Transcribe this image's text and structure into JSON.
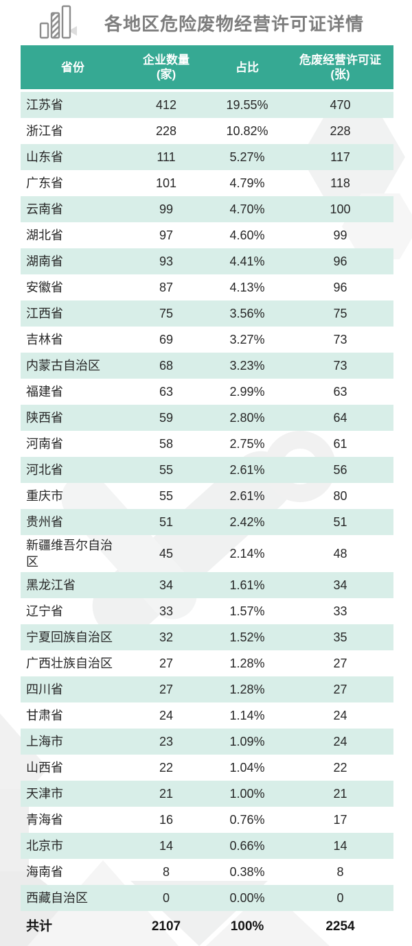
{
  "header": {
    "title": "各地区危险废物经营许可证详情",
    "icon": "bar-chart-icon"
  },
  "chart_data": {
    "type": "table",
    "title": "各地区危险废物经营许可证详情",
    "columns": [
      {
        "label": "省份",
        "sub": ""
      },
      {
        "label": "企业数量",
        "sub": "(家)"
      },
      {
        "label": "占比",
        "sub": ""
      },
      {
        "label": "危废经营许可证",
        "sub": "(张)"
      }
    ],
    "rows": [
      {
        "province": "江苏省",
        "companies": 412,
        "share": "19.55%",
        "licenses": 470
      },
      {
        "province": "浙江省",
        "companies": 228,
        "share": "10.82%",
        "licenses": 228
      },
      {
        "province": "山东省",
        "companies": 111,
        "share": "5.27%",
        "licenses": 117
      },
      {
        "province": "广东省",
        "companies": 101,
        "share": "4.79%",
        "licenses": 118
      },
      {
        "province": "云南省",
        "companies": 99,
        "share": "4.70%",
        "licenses": 100
      },
      {
        "province": "湖北省",
        "companies": 97,
        "share": "4.60%",
        "licenses": 99
      },
      {
        "province": "湖南省",
        "companies": 93,
        "share": "4.41%",
        "licenses": 96
      },
      {
        "province": "安徽省",
        "companies": 87,
        "share": "4.13%",
        "licenses": 96
      },
      {
        "province": "江西省",
        "companies": 75,
        "share": "3.56%",
        "licenses": 75
      },
      {
        "province": "吉林省",
        "companies": 69,
        "share": "3.27%",
        "licenses": 73
      },
      {
        "province": "内蒙古自治区",
        "companies": 68,
        "share": "3.23%",
        "licenses": 73
      },
      {
        "province": "福建省",
        "companies": 63,
        "share": "2.99%",
        "licenses": 63
      },
      {
        "province": "陕西省",
        "companies": 59,
        "share": "2.80%",
        "licenses": 64
      },
      {
        "province": "河南省",
        "companies": 58,
        "share": "2.75%",
        "licenses": 61
      },
      {
        "province": "河北省",
        "companies": 55,
        "share": "2.61%",
        "licenses": 56
      },
      {
        "province": "重庆市",
        "companies": 55,
        "share": "2.61%",
        "licenses": 80
      },
      {
        "province": "贵州省",
        "companies": 51,
        "share": "2.42%",
        "licenses": 51
      },
      {
        "province": "新疆维吾尔自治区",
        "companies": 45,
        "share": "2.14%",
        "licenses": 48
      },
      {
        "province": "黑龙江省",
        "companies": 34,
        "share": "1.61%",
        "licenses": 34
      },
      {
        "province": "辽宁省",
        "companies": 33,
        "share": "1.57%",
        "licenses": 33
      },
      {
        "province": "宁夏回族自治区",
        "companies": 32,
        "share": "1.52%",
        "licenses": 35
      },
      {
        "province": "广西壮族自治区",
        "companies": 27,
        "share": "1.28%",
        "licenses": 27
      },
      {
        "province": "四川省",
        "companies": 27,
        "share": "1.28%",
        "licenses": 27
      },
      {
        "province": "甘肃省",
        "companies": 24,
        "share": "1.14%",
        "licenses": 24
      },
      {
        "province": "上海市",
        "companies": 23,
        "share": "1.09%",
        "licenses": 24
      },
      {
        "province": "山西省",
        "companies": 22,
        "share": "1.04%",
        "licenses": 22
      },
      {
        "province": "天津市",
        "companies": 21,
        "share": "1.00%",
        "licenses": 21
      },
      {
        "province": "青海省",
        "companies": 16,
        "share": "0.76%",
        "licenses": 17
      },
      {
        "province": "北京市",
        "companies": 14,
        "share": "0.66%",
        "licenses": 14
      },
      {
        "province": "海南省",
        "companies": 8,
        "share": "0.38%",
        "licenses": 8
      },
      {
        "province": "西藏自治区",
        "companies": 0,
        "share": "0.00%",
        "licenses": 0
      }
    ],
    "total": {
      "label": "共计",
      "companies": 2107,
      "share": "100%",
      "licenses": 2254
    }
  },
  "colors": {
    "header_bg": "#36a993",
    "row_alt_bg": "#d6ede7",
    "header_text": "#ffffff",
    "body_text": "#262626",
    "title_text": "#7d7d7d",
    "watermark": "#f0f1f1"
  }
}
